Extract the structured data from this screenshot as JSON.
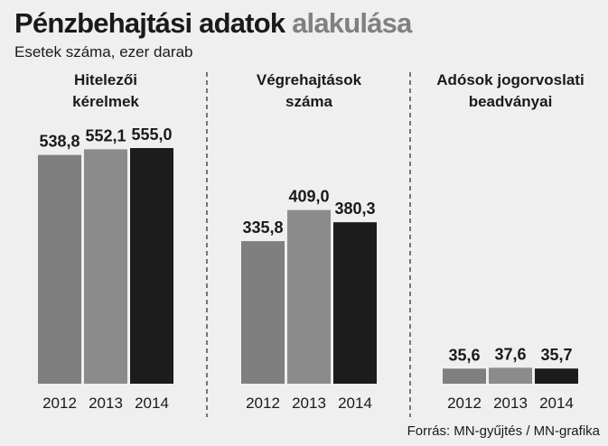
{
  "title_parts": [
    "Pénzbehajtási adatok",
    "alakulása"
  ],
  "subtitle": "Esetek száma, ezer darab",
  "source": "Forrás: MN-gyűjtés / MN-grafika",
  "chart_data": [
    {
      "type": "bar",
      "title": [
        "Hitelezői",
        "kérelmek"
      ],
      "categories": [
        "2012",
        "2013",
        "2014"
      ],
      "values": [
        538.8,
        552.1,
        555.0
      ],
      "value_labels": [
        "538,8",
        "552,1",
        "555,0"
      ],
      "colors": [
        "#7f7f7f",
        "#8b8b8b",
        "#1c1c1c"
      ]
    },
    {
      "type": "bar",
      "title": [
        "Végrehajtások",
        "száma"
      ],
      "categories": [
        "2012",
        "2013",
        "2014"
      ],
      "values": [
        335.8,
        409.0,
        380.3
      ],
      "value_labels": [
        "335,8",
        "409,0",
        "380,3"
      ],
      "colors": [
        "#7f7f7f",
        "#8b8b8b",
        "#1c1c1c"
      ]
    },
    {
      "type": "bar",
      "title": [
        "Adósok jogorvoslati",
        "beadványai"
      ],
      "categories": [
        "2012",
        "2013",
        "2014"
      ],
      "values": [
        35.6,
        37.6,
        35.7
      ],
      "value_labels": [
        "35,6",
        "37,6",
        "35,7"
      ],
      "colors": [
        "#7f7f7f",
        "#8b8b8b",
        "#1c1c1c"
      ]
    }
  ]
}
